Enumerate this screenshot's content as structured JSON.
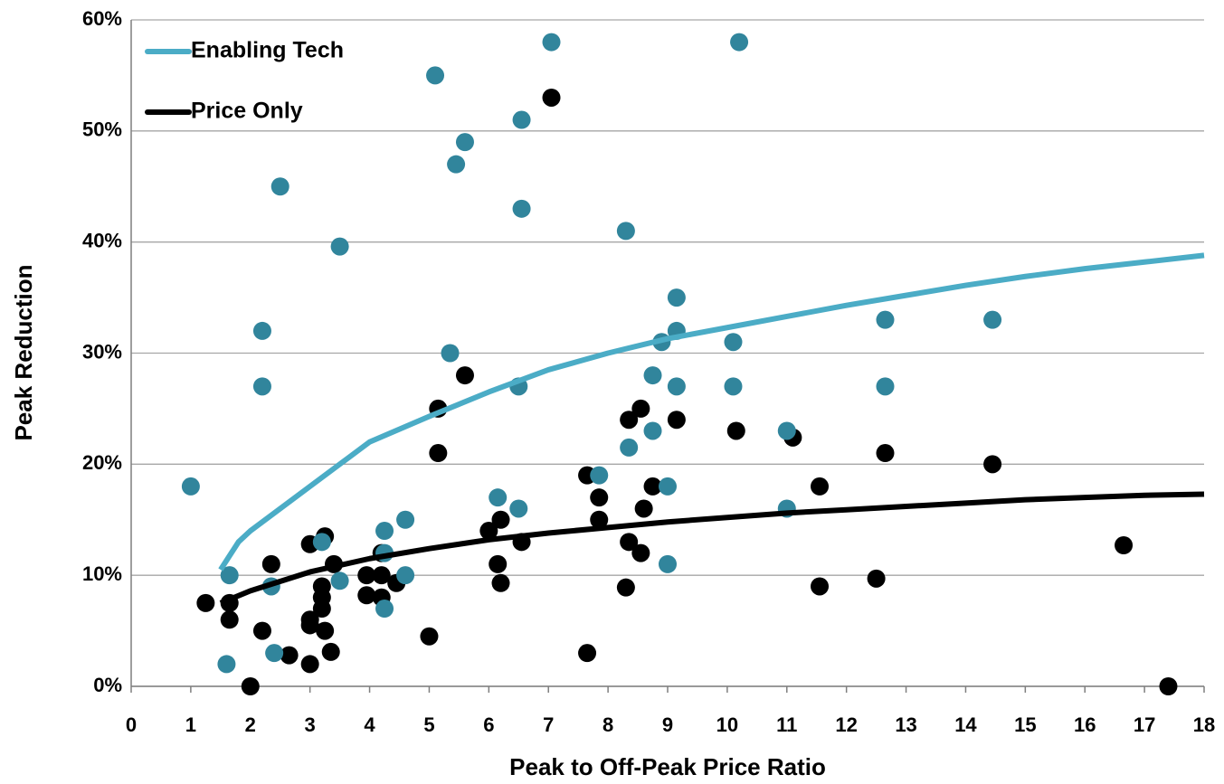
{
  "chart_data": {
    "type": "scatter",
    "xlabel": "Peak to Off-Peak Price Ratio",
    "ylabel": "Peak Reduction",
    "xlim": [
      0,
      18
    ],
    "ylim": [
      0,
      60
    ],
    "xticks": [
      0,
      1,
      2,
      3,
      4,
      5,
      6,
      7,
      8,
      9,
      10,
      11,
      12,
      13,
      14,
      15,
      16,
      17,
      18
    ],
    "yticks": [
      {
        "value": 0,
        "label": "0%"
      },
      {
        "value": 10,
        "label": "10%"
      },
      {
        "value": 20,
        "label": "20%"
      },
      {
        "value": 30,
        "label": "30%"
      },
      {
        "value": 40,
        "label": "40%"
      },
      {
        "value": 50,
        "label": "50%"
      },
      {
        "value": 60,
        "label": "60%"
      }
    ],
    "grid": true,
    "legend": "upper left",
    "series": [
      {
        "name": "Enabling Tech",
        "color": "#4bacc6",
        "point_color": "#31859c",
        "points": {
          "x": [
            1.0,
            1.65,
            1.6,
            2.2,
            2.2,
            2.35,
            2.4,
            2.5,
            3.2,
            3.5,
            3.5,
            4.25,
            4.25,
            4.25,
            4.6,
            4.6,
            5.1,
            5.35,
            5.45,
            5.6,
            6.15,
            6.5,
            6.5,
            6.55,
            6.55,
            7.05,
            7.85,
            8.3,
            8.35,
            8.75,
            8.75,
            8.9,
            9.0,
            9.0,
            9.15,
            9.15,
            9.15,
            10.1,
            10.1,
            10.2,
            11.0,
            11.0,
            12.65,
            12.65,
            14.45
          ],
          "values": [
            18,
            10,
            2,
            32,
            27,
            9,
            3,
            45,
            13,
            39.6,
            9.5,
            14,
            12,
            7,
            15,
            10,
            55,
            30,
            47,
            49,
            17,
            16,
            27,
            51,
            43,
            58,
            19,
            41,
            21.5,
            28,
            23,
            31,
            18,
            11,
            35,
            32,
            27,
            31,
            27,
            58,
            23,
            16,
            33,
            27,
            33
          ]
        },
        "fit": {
          "x": [
            1.5,
            1.8,
            2,
            3,
            4,
            5,
            6,
            7,
            8,
            9,
            10,
            11,
            12,
            13,
            14,
            15,
            16,
            17,
            18
          ],
          "values": [
            10.5,
            13,
            14,
            18,
            22,
            24.3,
            26.5,
            28.5,
            30,
            31.3,
            32.3,
            33.3,
            34.3,
            35.2,
            36.1,
            36.9,
            37.6,
            38.2,
            38.8
          ]
        }
      },
      {
        "name": "Price Only",
        "color": "#000000",
        "point_color": "#000000",
        "points": {
          "x": [
            1.25,
            1.65,
            1.65,
            2.0,
            2.2,
            2.35,
            2.65,
            3.0,
            3.0,
            3.0,
            3.0,
            3.2,
            3.2,
            3.2,
            3.25,
            3.25,
            3.35,
            3.4,
            3.95,
            3.95,
            4.2,
            4.2,
            4.2,
            4.45,
            5.0,
            5.15,
            5.15,
            5.6,
            6.0,
            6.15,
            6.2,
            6.2,
            6.55,
            7.05,
            7.65,
            7.65,
            7.85,
            7.85,
            8.35,
            8.35,
            8.3,
            8.55,
            8.55,
            8.6,
            8.75,
            9.15,
            10.15,
            11.1,
            11.55,
            11.55,
            12.5,
            12.65,
            14.45,
            16.65,
            17.4
          ],
          "values": [
            7.5,
            7.5,
            6,
            0,
            5,
            11,
            2.8,
            12.8,
            6,
            5.5,
            2,
            9,
            8,
            7,
            13.5,
            5,
            3.1,
            11,
            10,
            8.2,
            12,
            10,
            8,
            9.3,
            4.5,
            25,
            21,
            28,
            14,
            11,
            15,
            9.3,
            13,
            53,
            19,
            3,
            17,
            15,
            24,
            13,
            8.9,
            25,
            12,
            16,
            18,
            24,
            23,
            22.4,
            18,
            9,
            9.7,
            21,
            20,
            12.7,
            0
          ]
        },
        "fit": {
          "x": [
            1.5,
            2,
            3,
            4,
            5,
            6,
            7,
            8,
            9,
            10,
            11,
            12,
            13,
            14,
            15,
            16,
            17,
            18
          ],
          "values": [
            7.5,
            8.6,
            10.3,
            11.5,
            12.4,
            13.2,
            13.8,
            14.3,
            14.8,
            15.2,
            15.6,
            15.9,
            16.2,
            16.5,
            16.8,
            17.0,
            17.2,
            17.3
          ]
        }
      }
    ]
  }
}
